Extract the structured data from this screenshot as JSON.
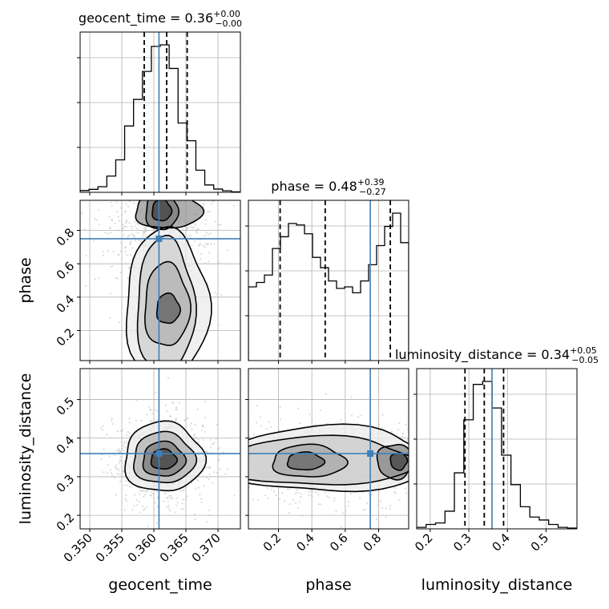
{
  "chart_data": {
    "type": "corner",
    "grid": true,
    "colors": {
      "hist": "#000000",
      "truth": "#3f7fb8",
      "contour": "#000000",
      "scatter": "#bdbdbd",
      "grid": "#b0b0b0"
    },
    "parameters": [
      {
        "key": "geocent_time",
        "label": "geocent_time",
        "range": [
          0.3485,
          0.3735
        ],
        "ticks": [
          0.35,
          0.355,
          0.36,
          0.365,
          0.37
        ],
        "tick_labels": [
          "0.350",
          "0.355",
          "0.360",
          "0.365",
          "0.370"
        ],
        "truth": 0.3608,
        "quantiles": [
          0.3585,
          0.362,
          0.3652
        ],
        "title": {
          "name": "geocent_time",
          "value": "0.36",
          "plus": "+0.00",
          "minus": "−0.00"
        },
        "hist": [
          0.012,
          0.02,
          0.038,
          0.11,
          0.22,
          0.45,
          0.63,
          0.82,
          0.99,
          1.0,
          0.84,
          0.47,
          0.35,
          0.15,
          0.05,
          0.022,
          0.01,
          0.003
        ]
      },
      {
        "key": "phase",
        "label": "phase",
        "range": [
          0.02,
          0.98
        ],
        "ticks": [
          0.2,
          0.4,
          0.6,
          0.8
        ],
        "tick_labels": [
          "0.2",
          "0.4",
          "0.6",
          "0.8"
        ],
        "truth": 0.75,
        "quantiles": [
          0.21,
          0.48,
          0.87
        ],
        "title": {
          "name": "phase",
          "value": "0.48",
          "plus": "+0.39",
          "minus": "−0.27"
        },
        "hist": [
          0.5,
          0.53,
          0.58,
          0.76,
          0.84,
          0.93,
          0.92,
          0.86,
          0.7,
          0.63,
          0.54,
          0.49,
          0.5,
          0.46,
          0.54,
          0.65,
          0.78,
          0.91,
          1.0,
          0.8
        ]
      },
      {
        "key": "luminosity_distance",
        "label": "luminosity_distance",
        "range": [
          0.165,
          0.58
        ],
        "ticks": [
          0.2,
          0.3,
          0.4,
          0.5
        ],
        "tick_labels": [
          "0.2",
          "0.3",
          "0.4",
          "0.5"
        ],
        "truth": 0.36,
        "quantiles": [
          0.29,
          0.34,
          0.39
        ],
        "title": {
          "name": "luminosity_distance",
          "value": "0.34",
          "plus": "+0.05",
          "minus": "−0.05"
        },
        "hist": [
          0.01,
          0.03,
          0.04,
          0.12,
          0.38,
          0.74,
          0.98,
          1.0,
          0.82,
          0.5,
          0.3,
          0.15,
          0.08,
          0.06,
          0.03,
          0.01,
          0.005
        ]
      }
    ],
    "pairs": [
      {
        "x": "geocent_time",
        "y": "phase",
        "levels": [
          {
            "cx": 0.3612,
            "cy": 0.92,
            "rx": 0.0025,
            "ry": 0.12
          },
          {
            "cx": 0.3612,
            "cy": 0.92,
            "rx": 0.0015,
            "ry": 0.065
          },
          {
            "cx": 0.3618,
            "cy": 0.35,
            "rx": 0.0045,
            "ry": 0.4
          },
          {
            "cx": 0.362,
            "cy": 0.35,
            "rx": 0.0035,
            "ry": 0.25
          },
          {
            "cx": 0.3622,
            "cy": 0.33,
            "rx": 0.0018,
            "ry": 0.09
          },
          {
            "cx": 0.3622,
            "cy": 0.92,
            "rx": 0.0052,
            "ry": 0.11
          },
          {
            "cx": 0.362,
            "cy": 0.36,
            "rx": 0.0065,
            "ry": 0.44
          }
        ],
        "spread": [
          0.0038,
          0.23
        ]
      },
      {
        "x": "geocent_time",
        "y": "luminosity_distance",
        "levels": [
          {
            "cx": 0.3615,
            "cy": 0.345,
            "rx": 0.002,
            "ry": 0.026
          },
          {
            "cx": 0.3615,
            "cy": 0.345,
            "rx": 0.0033,
            "ry": 0.045
          },
          {
            "cx": 0.3615,
            "cy": 0.348,
            "rx": 0.0048,
            "ry": 0.066
          },
          {
            "cx": 0.3615,
            "cy": 0.35,
            "rx": 0.0062,
            "ry": 0.09
          }
        ],
        "spread": [
          0.0032,
          0.048
        ]
      },
      {
        "x": "phase",
        "y": "luminosity_distance",
        "levels": [
          {
            "cx": 0.36,
            "cy": 0.34,
            "rx": 0.11,
            "ry": 0.023
          },
          {
            "cx": 0.92,
            "cy": 0.34,
            "rx": 0.05,
            "ry": 0.022
          },
          {
            "cx": 0.38,
            "cy": 0.34,
            "rx": 0.22,
            "ry": 0.042
          },
          {
            "cx": 0.9,
            "cy": 0.34,
            "rx": 0.11,
            "ry": 0.045
          },
          {
            "cx": 0.45,
            "cy": 0.34,
            "rx": 0.56,
            "ry": 0.063
          },
          {
            "cx": 0.5,
            "cy": 0.345,
            "rx": 0.62,
            "ry": 0.085
          }
        ],
        "spread": [
          0.24,
          0.045
        ]
      }
    ]
  }
}
